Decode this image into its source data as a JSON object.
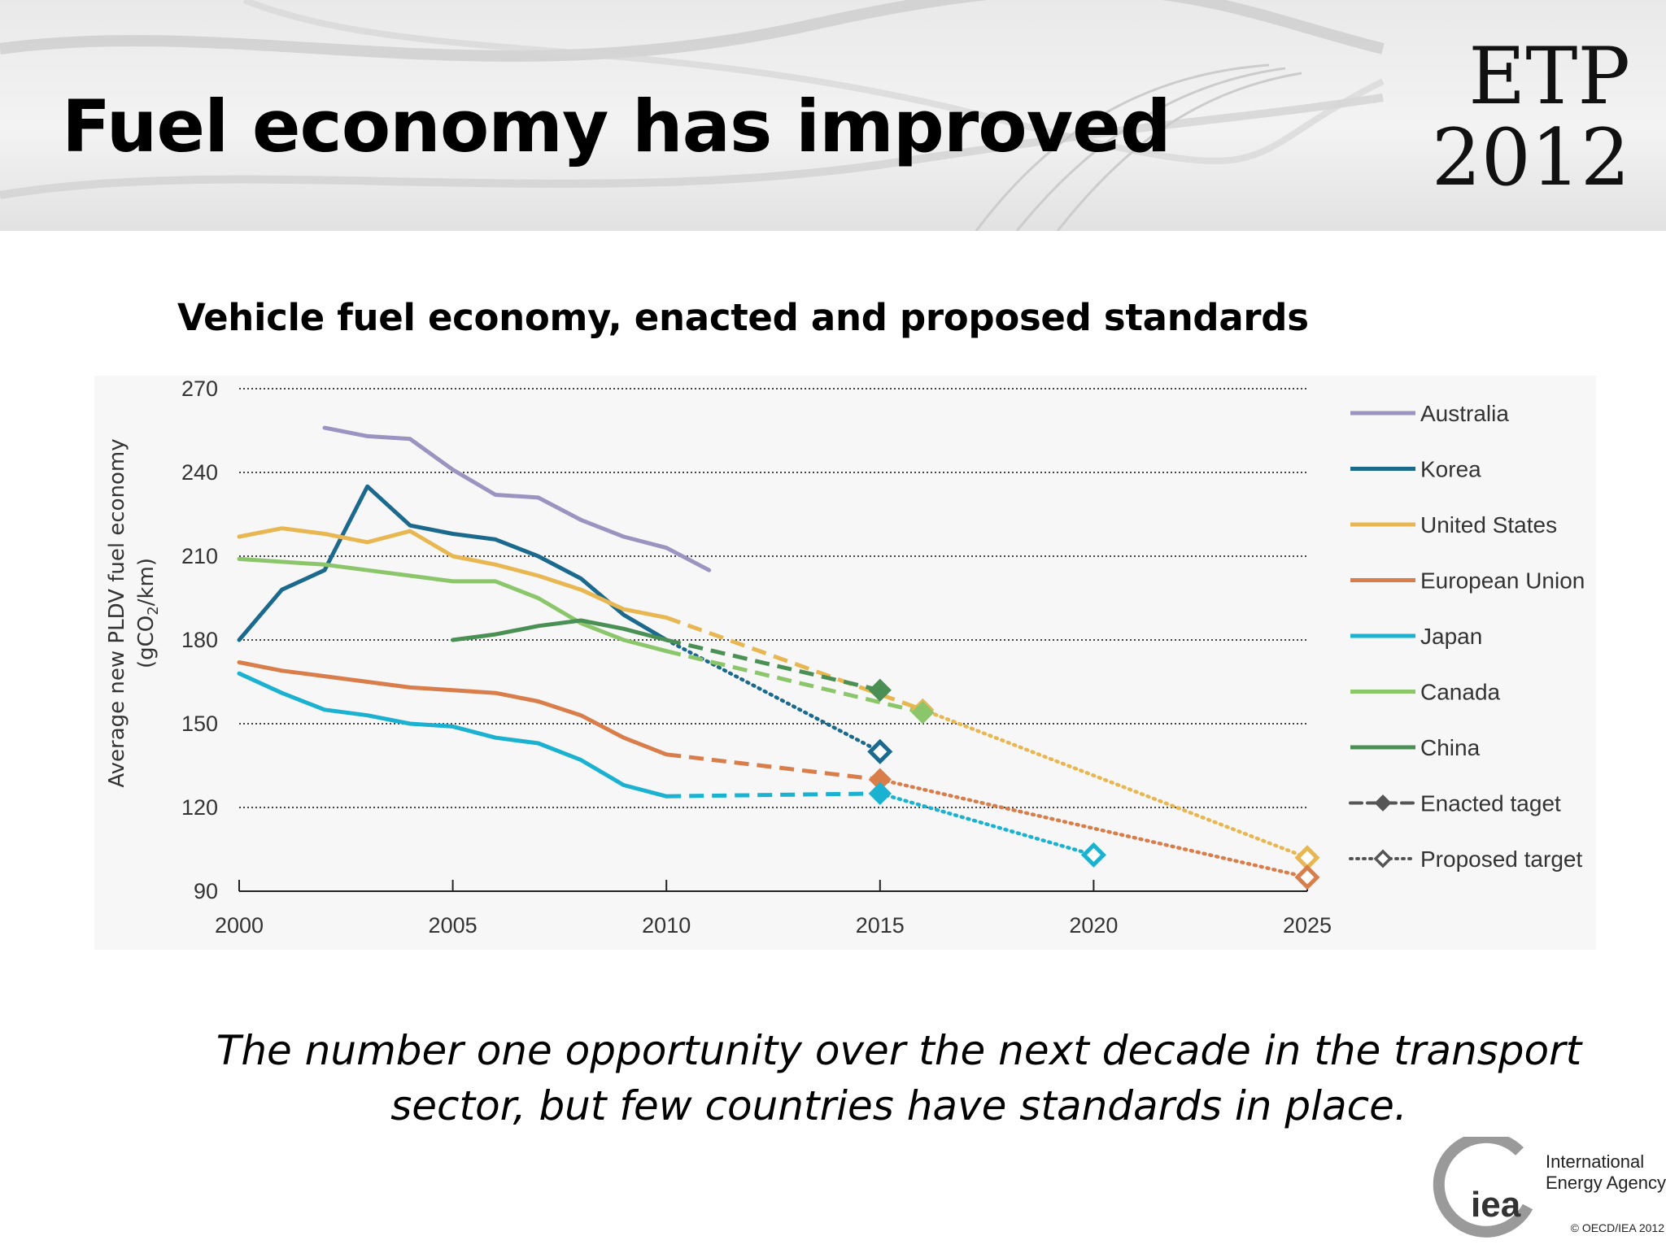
{
  "slide": {
    "title": "Fuel economy has improved",
    "logo": {
      "line1": "ETP",
      "line2": "2012"
    },
    "caption_line1": "The number one opportunity over the next decade in the transport",
    "caption_line2": "sector, but few countries have standards in place.",
    "iea": {
      "mark": "iea",
      "name_line1": "International",
      "name_line2": "Energy Agency",
      "copyright": "© OECD/IEA 2012"
    }
  },
  "chart_data": {
    "type": "line",
    "title": "Vehicle fuel economy, enacted and proposed standards",
    "ylabel_line1": "Average new PLDV fuel economy",
    "ylabel_line2": "(gCO",
    "ylabel_sub": "2",
    "ylabel_tail": "/km)",
    "xlim": [
      2000,
      2025
    ],
    "ylim": [
      90,
      270
    ],
    "x_ticks": [
      2000,
      2005,
      2010,
      2015,
      2020,
      2025
    ],
    "y_ticks": [
      90,
      120,
      150,
      180,
      210,
      240,
      270
    ],
    "grid": "horizontal dotted",
    "legend_position": "right",
    "series": [
      {
        "name": "Australia",
        "color": "#9b93c0",
        "x": [
          2002,
          2003,
          2004,
          2005,
          2006,
          2007,
          2008,
          2009,
          2010,
          2011
        ],
        "y": [
          256,
          253,
          252,
          241,
          232,
          231,
          223,
          217,
          213,
          205
        ]
      },
      {
        "name": "Korea",
        "color": "#1b6a8e",
        "x": [
          2000,
          2001,
          2002,
          2003,
          2004,
          2005,
          2006,
          2007,
          2008,
          2009,
          2010
        ],
        "y": [
          180,
          198,
          205,
          235,
          221,
          218,
          216,
          210,
          202,
          189,
          180
        ],
        "proposed": {
          "x": [
            2010,
            2015
          ],
          "y": [
            180,
            140
          ]
        }
      },
      {
        "name": "United States",
        "color": "#e8b751",
        "x": [
          2000,
          2001,
          2002,
          2003,
          2004,
          2005,
          2006,
          2007,
          2008,
          2009,
          2010
        ],
        "y": [
          217,
          220,
          218,
          215,
          219,
          210,
          207,
          203,
          198,
          191,
          188
        ],
        "enacted": {
          "x": [
            2010,
            2016
          ],
          "y": [
            188,
            155
          ]
        },
        "proposed": {
          "x": [
            2016,
            2025
          ],
          "y": [
            155,
            102
          ]
        }
      },
      {
        "name": "European Union",
        "color": "#d97d4a",
        "x": [
          2000,
          2001,
          2002,
          2003,
          2004,
          2005,
          2006,
          2007,
          2008,
          2009,
          2010
        ],
        "y": [
          172,
          169,
          167,
          165,
          163,
          162,
          161,
          158,
          153,
          145,
          139
        ],
        "enacted": {
          "x": [
            2010,
            2015
          ],
          "y": [
            139,
            130
          ]
        },
        "proposed": {
          "x": [
            2015,
            2025
          ],
          "y": [
            130,
            95
          ]
        }
      },
      {
        "name": "Japan",
        "color": "#1bb1d1",
        "x": [
          2000,
          2001,
          2002,
          2003,
          2004,
          2005,
          2006,
          2007,
          2008,
          2009,
          2010
        ],
        "y": [
          168,
          161,
          155,
          153,
          150,
          149,
          145,
          143,
          137,
          128,
          124
        ],
        "enacted": {
          "x": [
            2010,
            2015
          ],
          "y": [
            124,
            125
          ]
        },
        "proposed": {
          "x": [
            2015,
            2020
          ],
          "y": [
            125,
            103
          ]
        }
      },
      {
        "name": "Canada",
        "color": "#8cc66a",
        "x": [
          2000,
          2001,
          2002,
          2003,
          2004,
          2005,
          2006,
          2007,
          2008,
          2009,
          2010
        ],
        "y": [
          209,
          208,
          207,
          205,
          203,
          201,
          201,
          195,
          186,
          180,
          176
        ],
        "enacted": {
          "x": [
            2010,
            2016
          ],
          "y": [
            176,
            154
          ]
        }
      },
      {
        "name": "China",
        "color": "#4a8f53",
        "x": [
          2005,
          2006,
          2007,
          2008,
          2009,
          2010
        ],
        "y": [
          180,
          182,
          185,
          187,
          184,
          180
        ],
        "enacted": {
          "x": [
            2010,
            2015
          ],
          "y": [
            180,
            162
          ]
        }
      }
    ],
    "target_legend": [
      {
        "name": "Enacted taget",
        "style": "enacted",
        "color": "#555555"
      },
      {
        "name": "Proposed target",
        "style": "proposed",
        "color": "#555555"
      }
    ]
  }
}
